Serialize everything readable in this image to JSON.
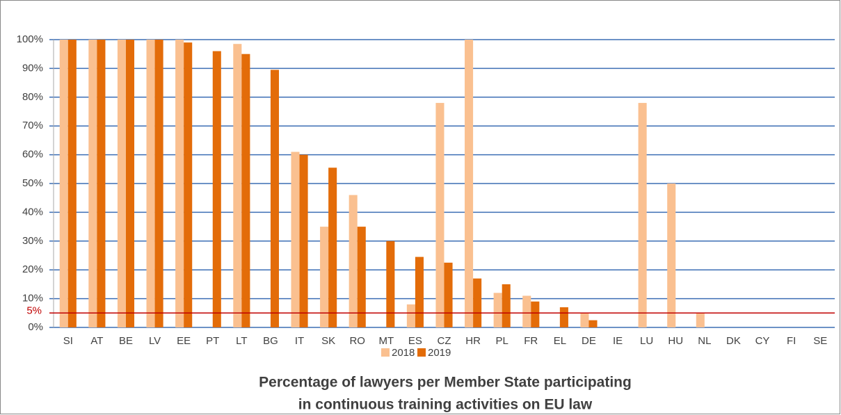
{
  "chart_data": {
    "type": "bar",
    "title_lines": [
      "Percentage of lawyers per Member State participating",
      "in continuous training activities on EU law"
    ],
    "categories": [
      "SI",
      "AT",
      "BE",
      "LV",
      "EE",
      "PT",
      "LT",
      "BG",
      "IT",
      "SK",
      "RO",
      "MT",
      "ES",
      "CZ",
      "HR",
      "PL",
      "FR",
      "EL",
      "DE",
      "IE",
      "LU",
      "HU",
      "NL",
      "DK",
      "CY",
      "FI",
      "SE"
    ],
    "series": [
      {
        "name": "2018",
        "color": "#fac090",
        "values": [
          100,
          100,
          100,
          100,
          100,
          null,
          98.5,
          null,
          61,
          35,
          46,
          null,
          8,
          78,
          100,
          12,
          11,
          null,
          5,
          null,
          78,
          50,
          5,
          null,
          null,
          null,
          null
        ]
      },
      {
        "name": "2019",
        "color": "#e36c09",
        "values": [
          100,
          100,
          100,
          100,
          99,
          96,
          95,
          89.5,
          60,
          55.5,
          35,
          30,
          24.5,
          22.5,
          17,
          15,
          9,
          7,
          2.5,
          null,
          null,
          null,
          null,
          null,
          null,
          null,
          null
        ]
      }
    ],
    "ylim": [
      0,
      100
    ],
    "yticks": [
      {
        "value": 0,
        "label": "0%"
      },
      {
        "value": 10,
        "label": "10%"
      },
      {
        "value": 20,
        "label": "20%"
      },
      {
        "value": 30,
        "label": "30%"
      },
      {
        "value": 40,
        "label": "40%"
      },
      {
        "value": 50,
        "label": "50%"
      },
      {
        "value": 60,
        "label": "60%"
      },
      {
        "value": 70,
        "label": "70%"
      },
      {
        "value": 80,
        "label": "80%"
      },
      {
        "value": 90,
        "label": "90%"
      },
      {
        "value": 100,
        "label": "100%"
      }
    ],
    "grid": true,
    "threshold": {
      "value": 5,
      "label": "5%",
      "color": "#c00000"
    },
    "legend": "bottom"
  }
}
